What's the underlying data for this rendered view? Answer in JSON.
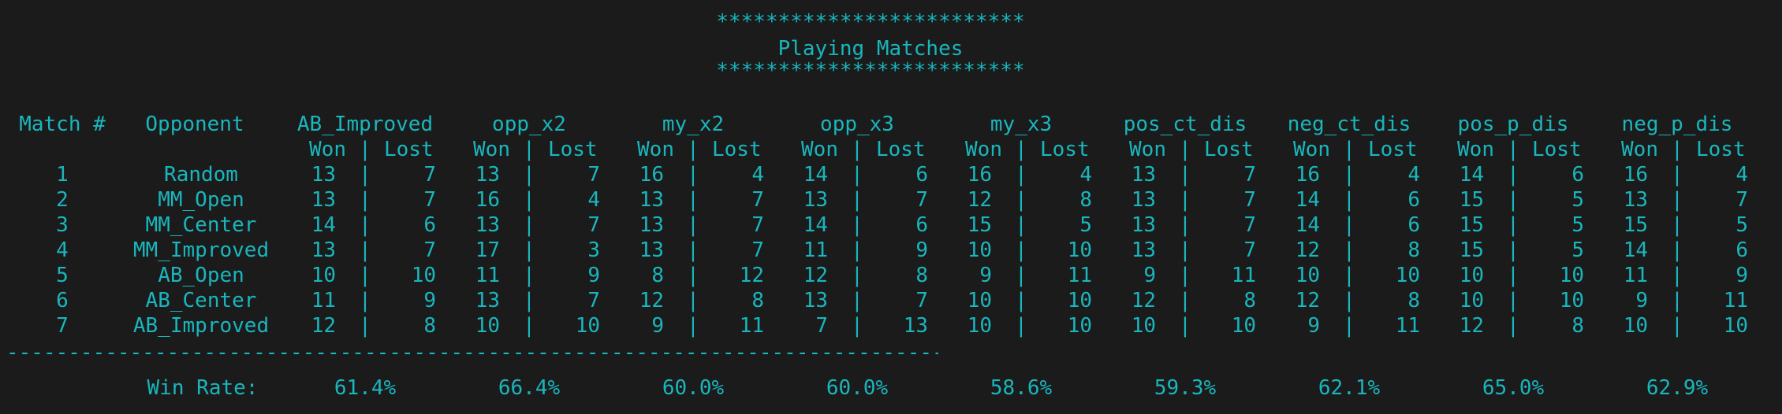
{
  "banner": {
    "stars": "*************************",
    "title": "Playing Matches"
  },
  "header": {
    "match_col": "Match #",
    "opponent_col": "Opponent",
    "agents": [
      "AB_Improved",
      "opp_x2",
      "my_x2",
      "opp_x3",
      "my_x3",
      "pos_ct_dis",
      "neg_ct_dis",
      "pos_p_dis",
      "neg_p_dis"
    ],
    "won_label": "Won",
    "pipe": "|",
    "lost_label": "Lost"
  },
  "rows": [
    {
      "match": "1",
      "opponent": "Random",
      "results": [
        [
          "13",
          "7"
        ],
        [
          "13",
          "7"
        ],
        [
          "16",
          "4"
        ],
        [
          "14",
          "6"
        ],
        [
          "16",
          "4"
        ],
        [
          "13",
          "7"
        ],
        [
          "16",
          "4"
        ],
        [
          "14",
          "6"
        ],
        [
          "16",
          "4"
        ]
      ]
    },
    {
      "match": "2",
      "opponent": "MM_Open",
      "results": [
        [
          "13",
          "7"
        ],
        [
          "16",
          "4"
        ],
        [
          "13",
          "7"
        ],
        [
          "13",
          "7"
        ],
        [
          "12",
          "8"
        ],
        [
          "13",
          "7"
        ],
        [
          "14",
          "6"
        ],
        [
          "15",
          "5"
        ],
        [
          "13",
          "7"
        ]
      ]
    },
    {
      "match": "3",
      "opponent": "MM_Center",
      "results": [
        [
          "14",
          "6"
        ],
        [
          "13",
          "7"
        ],
        [
          "13",
          "7"
        ],
        [
          "14",
          "6"
        ],
        [
          "15",
          "5"
        ],
        [
          "13",
          "7"
        ],
        [
          "14",
          "6"
        ],
        [
          "15",
          "5"
        ],
        [
          "15",
          "5"
        ]
      ]
    },
    {
      "match": "4",
      "opponent": "MM_Improved",
      "results": [
        [
          "13",
          "7"
        ],
        [
          "17",
          "3"
        ],
        [
          "13",
          "7"
        ],
        [
          "11",
          "9"
        ],
        [
          "10",
          "10"
        ],
        [
          "13",
          "7"
        ],
        [
          "12",
          "8"
        ],
        [
          "15",
          "5"
        ],
        [
          "14",
          "6"
        ]
      ]
    },
    {
      "match": "5",
      "opponent": "AB_Open",
      "results": [
        [
          "10",
          "10"
        ],
        [
          "11",
          "9"
        ],
        [
          "8",
          "12"
        ],
        [
          "12",
          "8"
        ],
        [
          "9",
          "11"
        ],
        [
          "9",
          "11"
        ],
        [
          "10",
          "10"
        ],
        [
          "10",
          "10"
        ],
        [
          "11",
          "9"
        ]
      ]
    },
    {
      "match": "6",
      "opponent": "AB_Center",
      "results": [
        [
          "11",
          "9"
        ],
        [
          "13",
          "7"
        ],
        [
          "12",
          "8"
        ],
        [
          "13",
          "7"
        ],
        [
          "10",
          "10"
        ],
        [
          "12",
          "8"
        ],
        [
          "12",
          "8"
        ],
        [
          "10",
          "10"
        ],
        [
          "9",
          "11"
        ]
      ]
    },
    {
      "match": "7",
      "opponent": "AB_Improved",
      "results": [
        [
          "12",
          "8"
        ],
        [
          "10",
          "10"
        ],
        [
          "9",
          "11"
        ],
        [
          "7",
          "13"
        ],
        [
          "10",
          "10"
        ],
        [
          "10",
          "10"
        ],
        [
          "9",
          "11"
        ],
        [
          "12",
          "8"
        ],
        [
          "10",
          "10"
        ]
      ]
    }
  ],
  "separator": "-----------------------------------------------------------------------------------------------------------------------------------------------------------------",
  "footer": {
    "label": "Win Rate:",
    "rates": [
      "61.4%",
      "66.4%",
      "60.0%",
      "60.0%",
      "58.6%",
      "59.3%",
      "62.1%",
      "65.0%",
      "62.9%"
    ]
  }
}
